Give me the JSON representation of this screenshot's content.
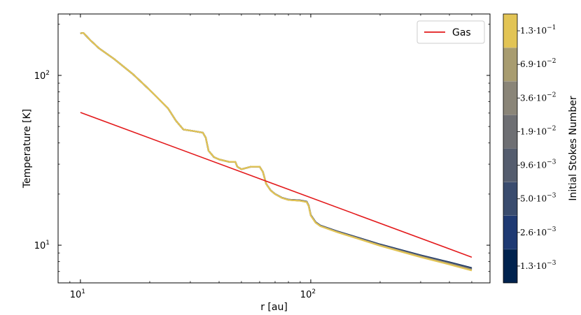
{
  "chart_data": {
    "type": "line",
    "xlabel": "r [au]",
    "ylabel": "Temperature [K]",
    "xscale": "log",
    "yscale": "log",
    "xlim": [
      8.0,
      600
    ],
    "ylim": [
      6.0,
      230
    ],
    "x_ticks": [
      {
        "value": 10,
        "base": "10",
        "exp": "1"
      },
      {
        "value": 100,
        "base": "10",
        "exp": "2"
      }
    ],
    "y_ticks": [
      {
        "value": 10,
        "base": "10",
        "exp": "1"
      },
      {
        "value": 100,
        "base": "10",
        "exp": "2"
      }
    ],
    "legend": {
      "position": "top-right",
      "entries": [
        "Gas"
      ]
    },
    "gas_series": {
      "name": "Gas",
      "color": "#e31a1c",
      "x": [
        10,
        500
      ],
      "y": [
        60.5,
        8.5
      ]
    },
    "dust_profile_x": [
      10,
      10.3,
      11,
      12,
      14,
      17,
      20,
      24,
      26,
      28,
      31,
      34,
      35,
      36,
      38,
      40,
      44,
      47,
      48,
      50,
      55,
      60,
      62,
      64,
      67,
      70,
      75,
      80,
      90,
      96,
      98,
      100,
      105,
      110,
      130,
      160,
      200,
      250,
      300,
      400,
      500
    ],
    "dust_profile_y": [
      177,
      178,
      162,
      145,
      125,
      101,
      82,
      64,
      54,
      48,
      47,
      46,
      43,
      36,
      33,
      32,
      31,
      31,
      29,
      28,
      29,
      29,
      27,
      23,
      21,
      20,
      19,
      18.5,
      18.3,
      18,
      17,
      15,
      13.6,
      13,
      12,
      11,
      10,
      9.2,
      8.6,
      7.8,
      7.2
    ],
    "dust_series": [
      {
        "stokes": "1.3e-03",
        "color": "#00224e",
        "tail_scale": 1.02
      },
      {
        "stokes": "2.6e-03",
        "color": "#1f3a73",
        "tail_scale": 1.015
      },
      {
        "stokes": "5.0e-03",
        "color": "#3a4c6e",
        "tail_scale": 1.01
      },
      {
        "stokes": "9.6e-03",
        "color": "#555d6e",
        "tail_scale": 1.005
      },
      {
        "stokes": "1.9e-02",
        "color": "#6e6f73",
        "tail_scale": 1.0
      },
      {
        "stokes": "3.6e-02",
        "color": "#8a8578",
        "tail_scale": 0.995
      },
      {
        "stokes": "6.9e-02",
        "color": "#a89c70",
        "tail_scale": 0.99
      },
      {
        "stokes": "1.3e-01",
        "color": "#e2c455",
        "tail_scale": 0.985
      }
    ],
    "colorbar": {
      "label": "Initial Stokes Number",
      "levels": [
        {
          "mant": "1.3",
          "exp": "−3",
          "color": "#00224e"
        },
        {
          "mant": "2.6",
          "exp": "−3",
          "color": "#1f3a73"
        },
        {
          "mant": "5.0",
          "exp": "−3",
          "color": "#3a4c6e"
        },
        {
          "mant": "9.6",
          "exp": "−3",
          "color": "#555d6e"
        },
        {
          "mant": "1.9",
          "exp": "−2",
          "color": "#6e6f73"
        },
        {
          "mant": "3.6",
          "exp": "−2",
          "color": "#8a8578"
        },
        {
          "mant": "6.9",
          "exp": "−2",
          "color": "#a89c70"
        },
        {
          "mant": "1.3",
          "exp": "−1",
          "color": "#e2c455"
        }
      ],
      "extra_color": "#f1d860",
      "extra_top": "#f4da5a"
    }
  }
}
